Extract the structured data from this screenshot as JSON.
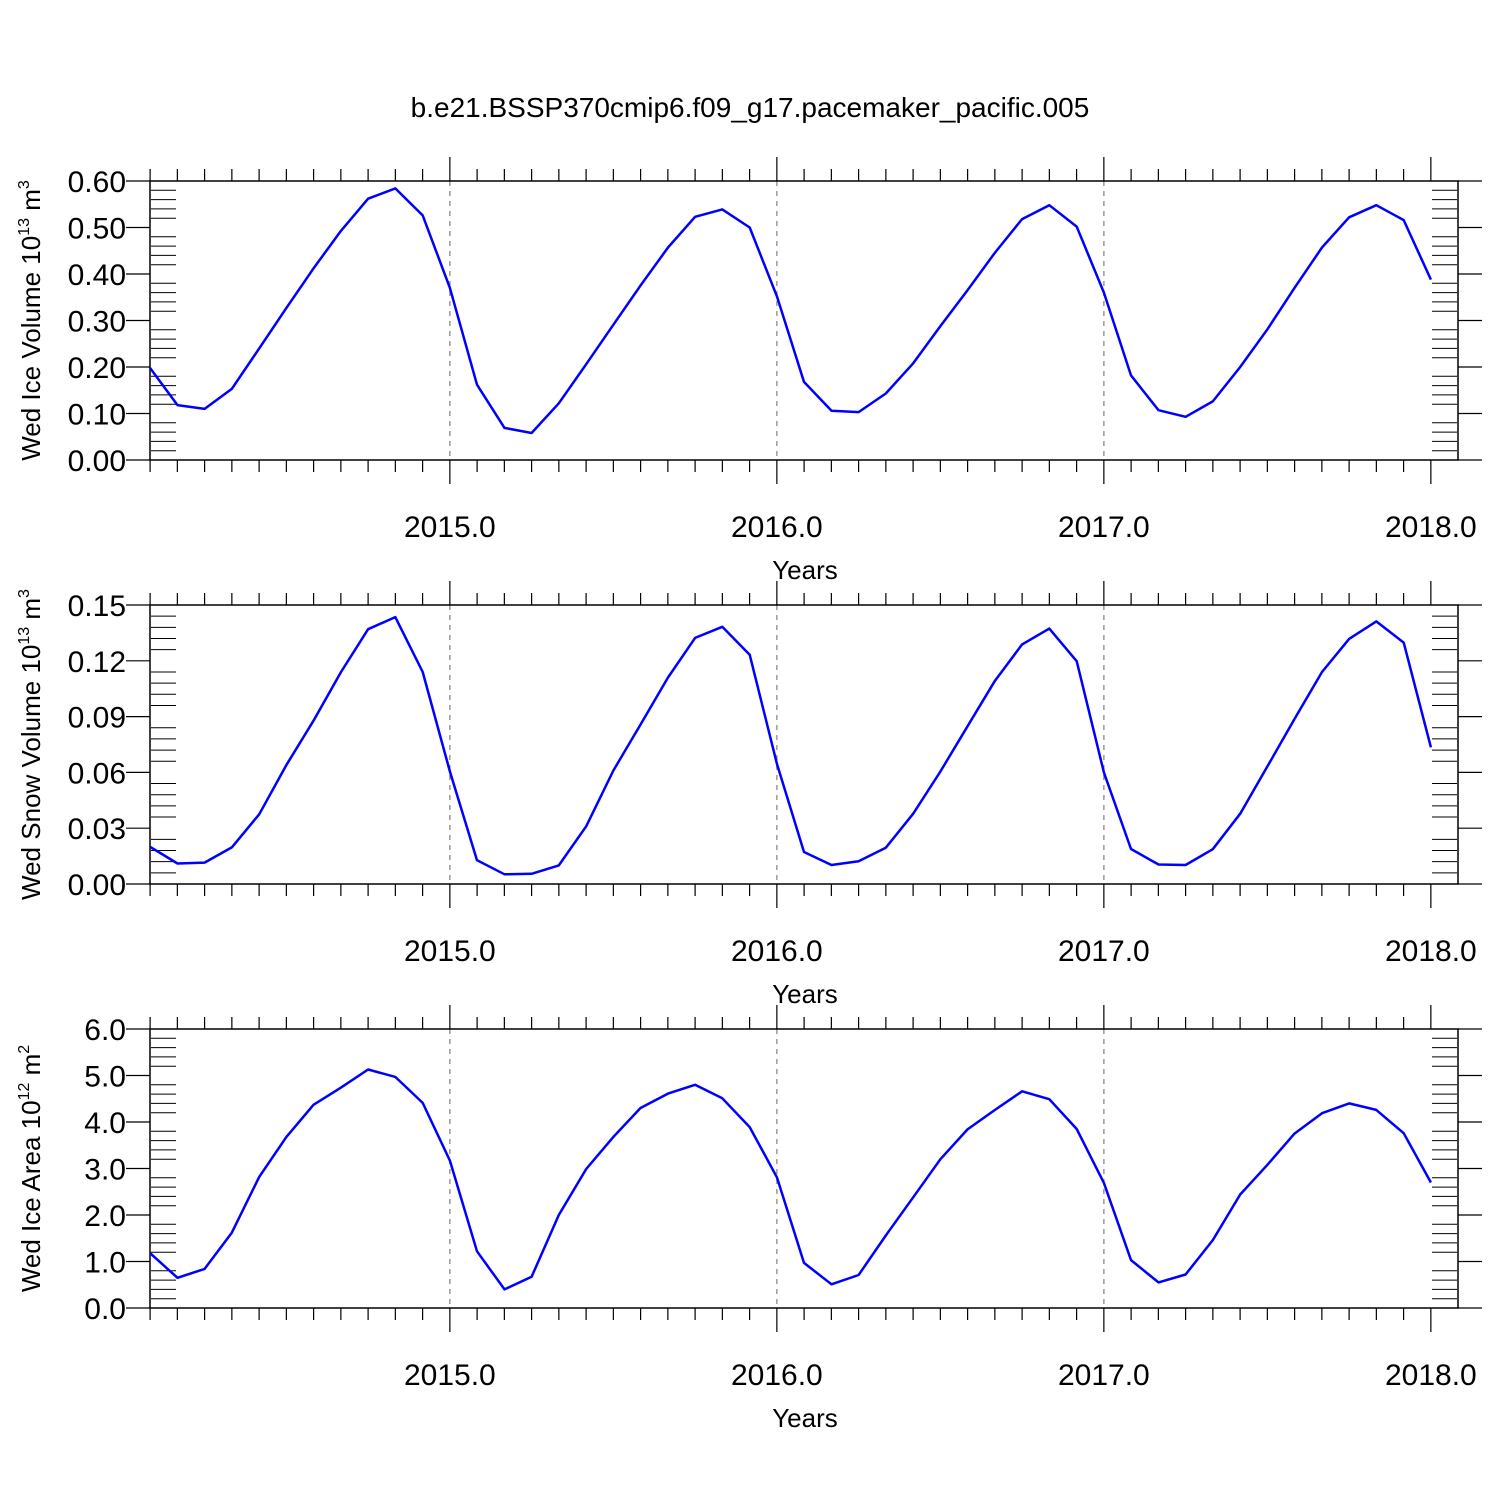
{
  "title": "b.e21.BSSP370cmip6.f09_g17.pacemaker_pacific.005",
  "colors": {
    "line": "#0000ff",
    "axis": "#000000",
    "ref_line": "#999999"
  },
  "chart_data": [
    {
      "type": "line",
      "xlabel": "Years",
      "ylabel_text": "Wed Ice Volume 10",
      "ylabel_exponent": "13",
      "ylabel_unit": "m",
      "ylabel_unit_exponent": "3",
      "xlim": [
        2014.083,
        2018.083
      ],
      "ylim": [
        0,
        0.6
      ],
      "x_ticks": [
        2015,
        2016,
        2017,
        2018
      ],
      "x_tick_labels": [
        "2015.0",
        "2016.0",
        "2017.0",
        "2018.0"
      ],
      "y_ticks": [
        0,
        0.1,
        0.2,
        0.3,
        0.4,
        0.5,
        0.6
      ],
      "y_tick_labels": [
        "0.00",
        "0.10",
        "0.20",
        "0.30",
        "0.40",
        "0.50",
        "0.60"
      ],
      "reference_lines_x": [
        2015,
        2016,
        2017
      ],
      "x": [
        2014.083,
        2014.167,
        2014.25,
        2014.333,
        2014.417,
        2014.5,
        2014.583,
        2014.667,
        2014.75,
        2014.833,
        2014.917,
        2015.0,
        2015.083,
        2015.167,
        2015.25,
        2015.333,
        2015.417,
        2015.5,
        2015.583,
        2015.667,
        2015.75,
        2015.833,
        2015.917,
        2016.0,
        2016.083,
        2016.167,
        2016.25,
        2016.333,
        2016.417,
        2016.5,
        2016.583,
        2016.667,
        2016.75,
        2016.833,
        2016.917,
        2017.0,
        2017.083,
        2017.167,
        2017.25,
        2017.333,
        2017.417,
        2017.5,
        2017.583,
        2017.667,
        2017.75,
        2017.833,
        2017.917,
        2018.0
      ],
      "series": [
        {
          "values": [
            0.198,
            0.118,
            0.11,
            0.153,
            0.24,
            0.327,
            0.412,
            0.493,
            0.562,
            0.584,
            0.526,
            0.37,
            0.162,
            0.069,
            0.058,
            0.122,
            0.206,
            0.291,
            0.375,
            0.457,
            0.523,
            0.539,
            0.5,
            0.352,
            0.168,
            0.106,
            0.103,
            0.143,
            0.208,
            0.288,
            0.365,
            0.446,
            0.518,
            0.548,
            0.502,
            0.36,
            0.182,
            0.107,
            0.093,
            0.126,
            0.2,
            0.281,
            0.37,
            0.457,
            0.522,
            0.548,
            0.516,
            0.388
          ]
        }
      ]
    },
    {
      "type": "line",
      "xlabel": "Years",
      "ylabel_text": "Wed Snow Volume 10",
      "ylabel_exponent": "13",
      "ylabel_unit": "m",
      "ylabel_unit_exponent": "3",
      "xlim": [
        2014.083,
        2018.083
      ],
      "ylim": [
        0,
        0.15
      ],
      "x_ticks": [
        2015,
        2016,
        2017,
        2018
      ],
      "x_tick_labels": [
        "2015.0",
        "2016.0",
        "2017.0",
        "2018.0"
      ],
      "y_ticks": [
        0,
        0.03,
        0.06,
        0.09,
        0.12,
        0.15
      ],
      "y_tick_labels": [
        "0.00",
        "0.03",
        "0.06",
        "0.09",
        "0.12",
        "0.15"
      ],
      "reference_lines_x": [
        2015,
        2016,
        2017
      ],
      "x": [
        2014.083,
        2014.167,
        2014.25,
        2014.333,
        2014.417,
        2014.5,
        2014.583,
        2014.667,
        2014.75,
        2014.833,
        2014.917,
        2015.0,
        2015.083,
        2015.167,
        2015.25,
        2015.333,
        2015.417,
        2015.5,
        2015.583,
        2015.667,
        2015.75,
        2015.833,
        2015.917,
        2016.0,
        2016.083,
        2016.167,
        2016.25,
        2016.333,
        2016.417,
        2016.5,
        2016.583,
        2016.667,
        2016.75,
        2016.833,
        2016.917,
        2017.0,
        2017.083,
        2017.167,
        2017.25,
        2017.333,
        2017.417,
        2017.5,
        2017.583,
        2017.667,
        2017.75,
        2017.833,
        2017.917,
        2018.0
      ],
      "series": [
        {
          "values": [
            0.02,
            0.011,
            0.0115,
            0.0197,
            0.0375,
            0.064,
            0.0878,
            0.114,
            0.137,
            0.1435,
            0.114,
            0.0605,
            0.0128,
            0.0052,
            0.0055,
            0.01,
            0.031,
            0.061,
            0.0857,
            0.111,
            0.1323,
            0.1383,
            0.1233,
            0.0647,
            0.0172,
            0.0102,
            0.0122,
            0.0195,
            0.0378,
            0.0605,
            0.0848,
            0.1093,
            0.1288,
            0.1373,
            0.1198,
            0.06,
            0.0188,
            0.0105,
            0.0102,
            0.0187,
            0.0378,
            0.0632,
            0.0887,
            0.114,
            0.1318,
            0.1412,
            0.1298,
            0.0735
          ]
        }
      ]
    },
    {
      "type": "line",
      "xlabel": "Years",
      "ylabel_text": "Wed Ice Area 10",
      "ylabel_exponent": "12",
      "ylabel_unit": "m",
      "ylabel_unit_exponent": "2",
      "xlim": [
        2014.083,
        2018.083
      ],
      "ylim": [
        0,
        6
      ],
      "x_ticks": [
        2015,
        2016,
        2017,
        2018
      ],
      "x_tick_labels": [
        "2015.0",
        "2016.0",
        "2017.0",
        "2018.0"
      ],
      "y_ticks": [
        0,
        1,
        2,
        3,
        4,
        5,
        6
      ],
      "y_tick_labels": [
        "0.0",
        "1.0",
        "2.0",
        "3.0",
        "4.0",
        "5.0",
        "6.0"
      ],
      "reference_lines_x": [
        2015,
        2016,
        2017
      ],
      "x": [
        2014.083,
        2014.167,
        2014.25,
        2014.333,
        2014.417,
        2014.5,
        2014.583,
        2014.667,
        2014.75,
        2014.833,
        2014.917,
        2015.0,
        2015.083,
        2015.167,
        2015.25,
        2015.333,
        2015.417,
        2015.5,
        2015.583,
        2015.667,
        2015.75,
        2015.833,
        2015.917,
        2016.0,
        2016.083,
        2016.167,
        2016.25,
        2016.333,
        2016.417,
        2016.5,
        2016.583,
        2016.667,
        2016.75,
        2016.833,
        2016.917,
        2017.0,
        2017.083,
        2017.167,
        2017.25,
        2017.333,
        2017.417,
        2017.5,
        2017.583,
        2017.667,
        2017.75,
        2017.833,
        2017.917,
        2018.0
      ],
      "series": [
        {
          "values": [
            1.18,
            0.65,
            0.84,
            1.62,
            2.82,
            3.68,
            4.37,
            4.74,
            5.13,
            4.97,
            4.41,
            3.17,
            1.22,
            0.4,
            0.67,
            2.0,
            2.99,
            3.68,
            4.3,
            4.61,
            4.8,
            4.51,
            3.89,
            2.81,
            0.97,
            0.51,
            0.71,
            1.56,
            2.38,
            3.2,
            3.84,
            4.26,
            4.66,
            4.49,
            3.85,
            2.69,
            1.03,
            0.55,
            0.72,
            1.46,
            2.44,
            3.08,
            3.75,
            4.19,
            4.4,
            4.26,
            3.76,
            2.7
          ]
        }
      ]
    }
  ]
}
